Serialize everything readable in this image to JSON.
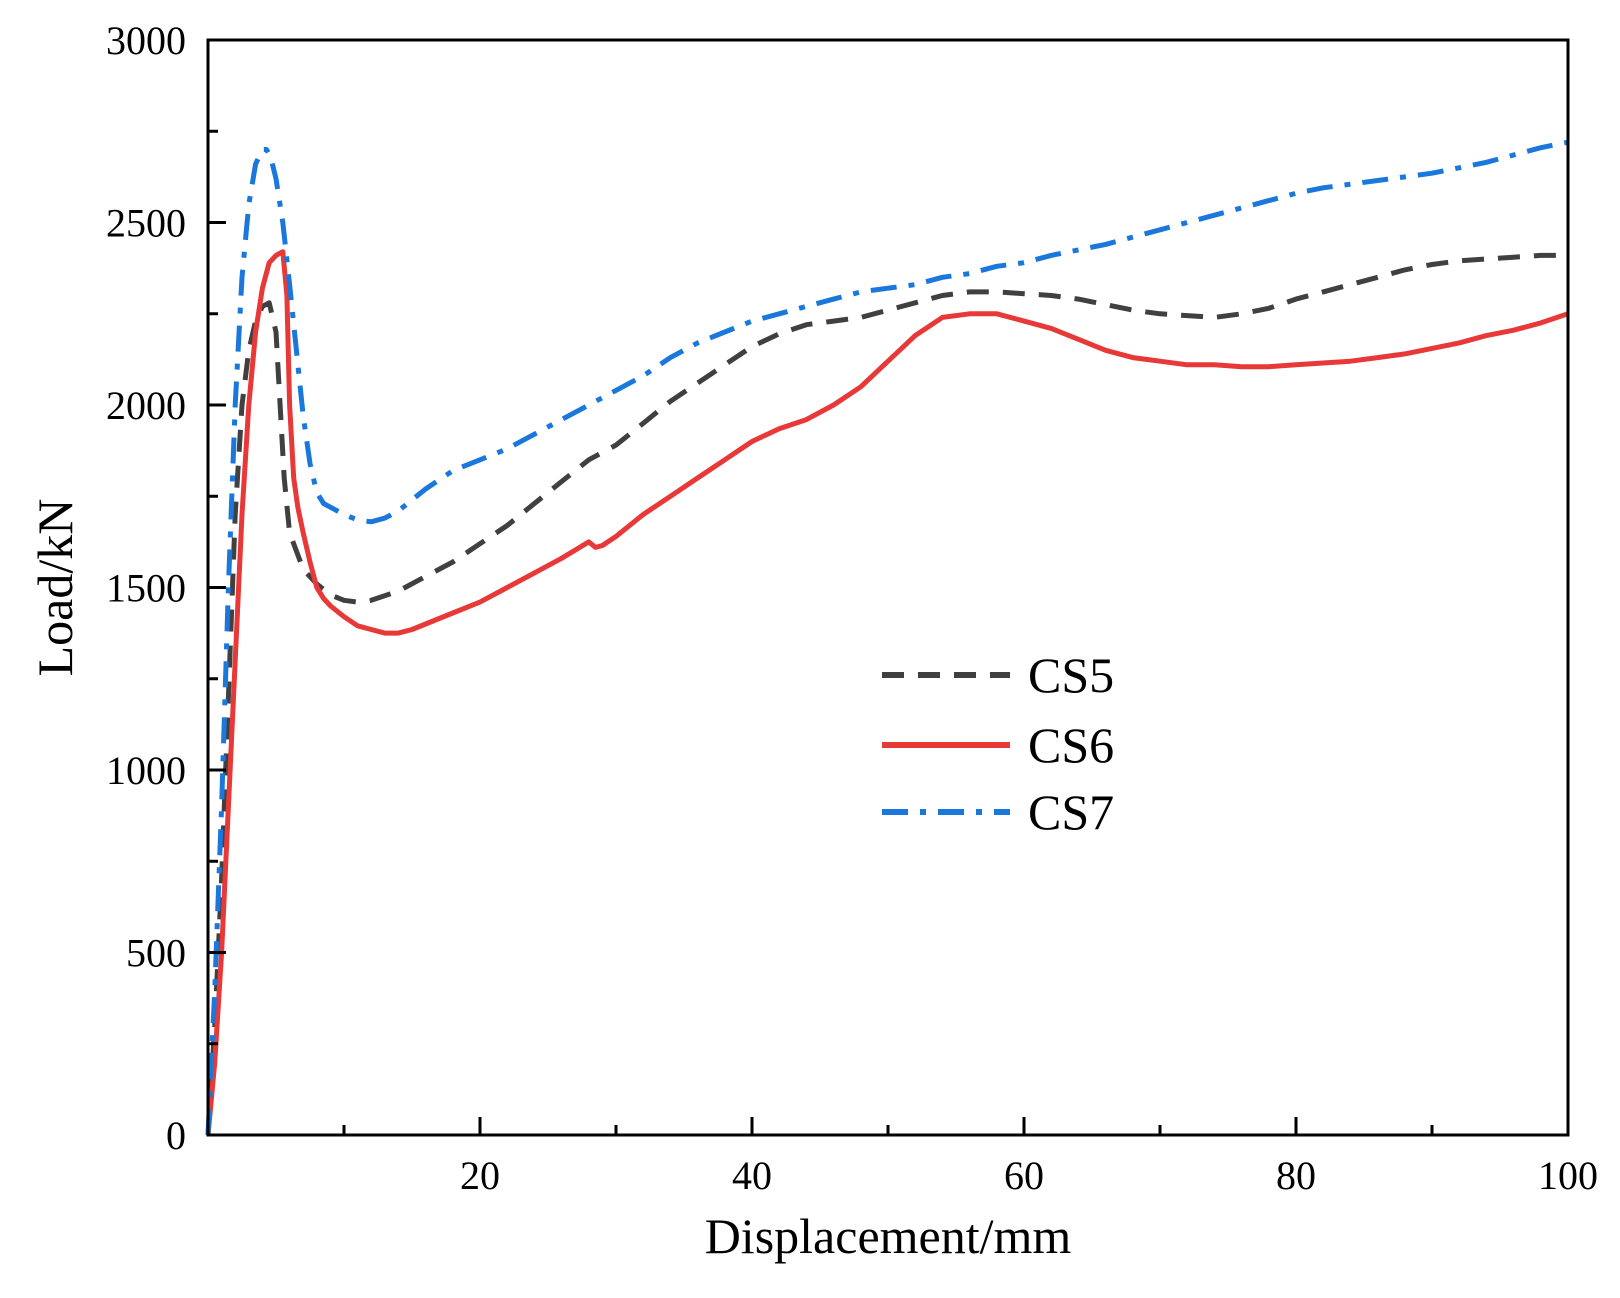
{
  "chart_data": {
    "type": "line",
    "title": "",
    "xlabel": "Displacement/mm",
    "ylabel": "Load/kN",
    "xlim": [
      0,
      100
    ],
    "ylim": [
      0,
      3000
    ],
    "xticks": [
      20,
      40,
      60,
      80,
      100
    ],
    "yticks": [
      0,
      500,
      1000,
      1500,
      2000,
      2500,
      3000
    ],
    "grid": false,
    "legend_position": "center",
    "series": [
      {
        "name": "CS5",
        "color": "#404040",
        "style": "dashed",
        "points": [
          [
            0,
            0
          ],
          [
            0.5,
            300
          ],
          [
            1,
            700
          ],
          [
            1.5,
            1200
          ],
          [
            2,
            1700
          ],
          [
            2.5,
            2000
          ],
          [
            3,
            2150
          ],
          [
            3.5,
            2230
          ],
          [
            4,
            2270
          ],
          [
            4.5,
            2280
          ],
          [
            5,
            2200
          ],
          [
            5.3,
            2000
          ],
          [
            5.6,
            1800
          ],
          [
            6,
            1650
          ],
          [
            7,
            1550
          ],
          [
            8,
            1510
          ],
          [
            9,
            1480
          ],
          [
            10,
            1465
          ],
          [
            11,
            1460
          ],
          [
            12,
            1465
          ],
          [
            14,
            1490
          ],
          [
            16,
            1530
          ],
          [
            18,
            1570
          ],
          [
            20,
            1620
          ],
          [
            22,
            1670
          ],
          [
            24,
            1730
          ],
          [
            26,
            1790
          ],
          [
            28,
            1850
          ],
          [
            30,
            1890
          ],
          [
            32,
            1950
          ],
          [
            34,
            2010
          ],
          [
            36,
            2060
          ],
          [
            38,
            2110
          ],
          [
            40,
            2160
          ],
          [
            42,
            2195
          ],
          [
            44,
            2220
          ],
          [
            46,
            2230
          ],
          [
            48,
            2240
          ],
          [
            50,
            2260
          ],
          [
            52,
            2280
          ],
          [
            54,
            2300
          ],
          [
            56,
            2310
          ],
          [
            58,
            2310
          ],
          [
            60,
            2305
          ],
          [
            62,
            2300
          ],
          [
            64,
            2290
          ],
          [
            66,
            2275
          ],
          [
            68,
            2260
          ],
          [
            70,
            2250
          ],
          [
            72,
            2245
          ],
          [
            74,
            2240
          ],
          [
            76,
            2250
          ],
          [
            78,
            2265
          ],
          [
            80,
            2290
          ],
          [
            82,
            2310
          ],
          [
            84,
            2330
          ],
          [
            86,
            2350
          ],
          [
            88,
            2370
          ],
          [
            90,
            2385
          ],
          [
            92,
            2395
          ],
          [
            94,
            2400
          ],
          [
            96,
            2405
          ],
          [
            98,
            2410
          ],
          [
            100,
            2410
          ]
        ]
      },
      {
        "name": "CS6",
        "color": "#e83838",
        "style": "solid",
        "points": [
          [
            0,
            0
          ],
          [
            0.5,
            200
          ],
          [
            1,
            500
          ],
          [
            1.5,
            900
          ],
          [
            2,
            1300
          ],
          [
            2.5,
            1700
          ],
          [
            3,
            2000
          ],
          [
            3.5,
            2200
          ],
          [
            4,
            2320
          ],
          [
            4.5,
            2390
          ],
          [
            5,
            2410
          ],
          [
            5.5,
            2420
          ],
          [
            5.8,
            2300
          ],
          [
            6,
            2000
          ],
          [
            6.3,
            1800
          ],
          [
            6.6,
            1720
          ],
          [
            7,
            1650
          ],
          [
            7.5,
            1570
          ],
          [
            8,
            1500
          ],
          [
            8.5,
            1470
          ],
          [
            9,
            1450
          ],
          [
            10,
            1420
          ],
          [
            11,
            1395
          ],
          [
            12,
            1385
          ],
          [
            13,
            1375
          ],
          [
            14,
            1375
          ],
          [
            15,
            1385
          ],
          [
            16,
            1400
          ],
          [
            18,
            1430
          ],
          [
            20,
            1460
          ],
          [
            22,
            1500
          ],
          [
            24,
            1540
          ],
          [
            26,
            1580
          ],
          [
            28,
            1625
          ],
          [
            28.5,
            1610
          ],
          [
            29,
            1615
          ],
          [
            30,
            1640
          ],
          [
            32,
            1700
          ],
          [
            34,
            1750
          ],
          [
            36,
            1800
          ],
          [
            38,
            1850
          ],
          [
            40,
            1900
          ],
          [
            42,
            1935
          ],
          [
            44,
            1960
          ],
          [
            46,
            2000
          ],
          [
            48,
            2050
          ],
          [
            50,
            2120
          ],
          [
            52,
            2190
          ],
          [
            54,
            2240
          ],
          [
            56,
            2250
          ],
          [
            58,
            2250
          ],
          [
            60,
            2230
          ],
          [
            62,
            2210
          ],
          [
            64,
            2180
          ],
          [
            66,
            2150
          ],
          [
            68,
            2130
          ],
          [
            70,
            2120
          ],
          [
            72,
            2110
          ],
          [
            74,
            2110
          ],
          [
            76,
            2105
          ],
          [
            78,
            2105
          ],
          [
            80,
            2110
          ],
          [
            82,
            2115
          ],
          [
            84,
            2120
          ],
          [
            86,
            2130
          ],
          [
            88,
            2140
          ],
          [
            90,
            2155
          ],
          [
            92,
            2170
          ],
          [
            94,
            2190
          ],
          [
            96,
            2205
          ],
          [
            98,
            2225
          ],
          [
            100,
            2250
          ]
        ]
      },
      {
        "name": "CS7",
        "color": "#1a78dc",
        "style": "dashdot",
        "points": [
          [
            0,
            0
          ],
          [
            0.5,
            400
          ],
          [
            1,
            900
          ],
          [
            1.5,
            1500
          ],
          [
            2,
            2000
          ],
          [
            2.5,
            2350
          ],
          [
            3,
            2550
          ],
          [
            3.5,
            2660
          ],
          [
            4,
            2700
          ],
          [
            4.3,
            2700
          ],
          [
            4.6,
            2680
          ],
          [
            5,
            2620
          ],
          [
            5.5,
            2500
          ],
          [
            6,
            2330
          ],
          [
            6.5,
            2150
          ],
          [
            7,
            1970
          ],
          [
            7.5,
            1840
          ],
          [
            8,
            1760
          ],
          [
            8.5,
            1730
          ],
          [
            9,
            1720
          ],
          [
            10,
            1700
          ],
          [
            11,
            1685
          ],
          [
            12,
            1680
          ],
          [
            13,
            1690
          ],
          [
            14,
            1710
          ],
          [
            15,
            1740
          ],
          [
            16,
            1770
          ],
          [
            18,
            1820
          ],
          [
            20,
            1850
          ],
          [
            22,
            1880
          ],
          [
            24,
            1920
          ],
          [
            26,
            1960
          ],
          [
            28,
            2000
          ],
          [
            30,
            2040
          ],
          [
            32,
            2080
          ],
          [
            34,
            2130
          ],
          [
            36,
            2170
          ],
          [
            38,
            2200
          ],
          [
            40,
            2230
          ],
          [
            42,
            2250
          ],
          [
            44,
            2270
          ],
          [
            46,
            2290
          ],
          [
            48,
            2310
          ],
          [
            50,
            2320
          ],
          [
            52,
            2330
          ],
          [
            54,
            2350
          ],
          [
            56,
            2360
          ],
          [
            58,
            2380
          ],
          [
            60,
            2390
          ],
          [
            62,
            2410
          ],
          [
            64,
            2425
          ],
          [
            66,
            2440
          ],
          [
            68,
            2460
          ],
          [
            70,
            2480
          ],
          [
            72,
            2500
          ],
          [
            74,
            2520
          ],
          [
            76,
            2540
          ],
          [
            78,
            2560
          ],
          [
            80,
            2580
          ],
          [
            82,
            2595
          ],
          [
            84,
            2605
          ],
          [
            86,
            2615
          ],
          [
            88,
            2625
          ],
          [
            90,
            2635
          ],
          [
            92,
            2650
          ],
          [
            94,
            2665
          ],
          [
            96,
            2685
          ],
          [
            98,
            2705
          ],
          [
            100,
            2720
          ]
        ]
      }
    ]
  }
}
